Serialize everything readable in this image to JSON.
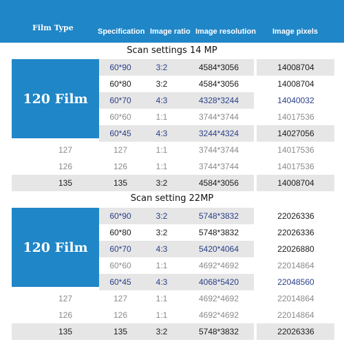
{
  "header": {
    "film_type": "Film Type",
    "specification": "Specification",
    "image_ratio": "Image ratio",
    "image_resolution": "Image resolution",
    "image_pixels": "Image pixels"
  },
  "sections": [
    {
      "title": "Scan settings 14 MP",
      "block_label": "120 Film",
      "rows": [
        {
          "film": "",
          "spec": "60*90",
          "ratio": "3:2",
          "res": "4584*3056",
          "pix": "14008704"
        },
        {
          "film": "",
          "spec": "60*80",
          "ratio": "3:2",
          "res": "4584*3056",
          "pix": "14008704"
        },
        {
          "film": "",
          "spec": "60*70",
          "ratio": "4:3",
          "res": "4328*3244",
          "pix": "14040032"
        },
        {
          "film": "",
          "spec": "60*60",
          "ratio": "1:1",
          "res": "3744*3744",
          "pix": "14017536"
        },
        {
          "film": "",
          "spec": "60*45",
          "ratio": "4:3",
          "res": "3244*4324",
          "pix": "14027056"
        },
        {
          "film": "127",
          "spec": "127",
          "ratio": "1:1",
          "res": "3744*3744",
          "pix": "14017536"
        },
        {
          "film": "126",
          "spec": "126",
          "ratio": "1:1",
          "res": "3744*3744",
          "pix": "14017536"
        },
        {
          "film": "135",
          "spec": "135",
          "ratio": "3:2",
          "res": "4584*3056",
          "pix": "14008704"
        }
      ]
    },
    {
      "title": "Scan setting 22MP",
      "block_label": "120 Film",
      "rows": [
        {
          "film": "",
          "spec": "60*90",
          "ratio": "3:2",
          "res": "5748*3832",
          "pix": "22026336"
        },
        {
          "film": "",
          "spec": "60*80",
          "ratio": "3:2",
          "res": "5748*3832",
          "pix": "22026336"
        },
        {
          "film": "",
          "spec": "60*70",
          "ratio": "4:3",
          "res": "5420*4064",
          "pix": "22026880"
        },
        {
          "film": "",
          "spec": "60*60",
          "ratio": "1:1",
          "res": "4692*4692",
          "pix": "22014864"
        },
        {
          "film": "",
          "spec": "60*45",
          "ratio": "4:3",
          "res": "4068*5420",
          "pix": "22048560"
        },
        {
          "film": "127",
          "spec": "127",
          "ratio": "1:1",
          "res": "4692*4692",
          "pix": "22014864"
        },
        {
          "film": "126",
          "spec": "126",
          "ratio": "1:1",
          "res": "4692*4692",
          "pix": "22014864"
        },
        {
          "film": "135",
          "spec": "135",
          "ratio": "3:2",
          "res": "5748*3832",
          "pix": "22026336"
        }
      ]
    }
  ]
}
